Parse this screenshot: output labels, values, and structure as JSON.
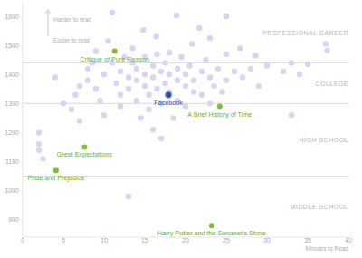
{
  "chart_data": {
    "type": "scatter",
    "x_label": "Minutes to Read",
    "xlim": [
      0,
      40
    ],
    "xticks": [
      0,
      5,
      10,
      15,
      20,
      25,
      30,
      35,
      40
    ],
    "ylim": [
      840,
      1650
    ],
    "yticks": [
      900,
      1000,
      1100,
      1200,
      1300,
      1400,
      1500,
      1600
    ],
    "color": "#d5d5f4",
    "x": [
      2,
      2,
      2,
      2.5,
      4,
      5,
      6,
      6.5,
      7,
      7,
      8,
      8.5,
      8,
      9,
      9,
      9.5,
      10,
      10.5,
      10,
      11,
      11,
      11.5,
      12,
      12,
      12.5,
      12,
      13,
      13,
      13.5,
      13.5,
      13,
      14,
      14,
      14,
      14.5,
      14.8,
      15,
      15,
      15,
      15.5,
      15.5,
      16,
      16,
      16,
      16.4,
      16.5,
      16.5,
      17,
      17,
      17,
      17.5,
      17.5,
      18,
      18,
      18,
      18.5,
      18.9,
      19,
      19,
      19,
      19.5,
      20,
      20,
      20,
      20.5,
      20.8,
      21,
      21,
      21.7,
      22,
      22,
      22.5,
      23,
      23,
      23,
      23.5,
      24,
      24.5,
      25,
      25,
      25,
      26,
      26.7,
      27,
      28,
      28.6,
      29,
      30,
      32,
      33,
      33,
      34,
      35,
      37.2,
      37.4
    ],
    "values": [
      1200,
      1160,
      1140,
      1110,
      1390,
      1300,
      1280,
      1330,
      1360,
      1240,
      1380,
      1440,
      1420,
      1480,
      1350,
      1310,
      1400,
      1515,
      1260,
      1613,
      1440,
      1370,
      1330,
      1410,
      1460,
      1290,
      1390,
      1350,
      1490,
      1440,
      980,
      1420,
      1380,
      1310,
      1250,
      1553,
      1460,
      1400,
      1360,
      1330,
      1280,
      1430,
      1390,
      1210,
      1530,
      1470,
      1350,
      1410,
      1300,
      1180,
      1440,
      1370,
      1475,
      1400,
      1340,
      1250,
      1603,
      1420,
      1380,
      1310,
      1460,
      1400,
      1360,
      1290,
      1430,
      1505,
      1380,
      1340,
      1560,
      1410,
      1330,
      1450,
      1525,
      1390,
      1300,
      1360,
      1420,
      1340,
      1600,
      1470,
      1380,
      1410,
      1490,
      1390,
      1420,
      1465,
      1360,
      1430,
      1410,
      1260,
      1440,
      1400,
      1436,
      1505,
      1483
    ],
    "highlights": [
      {
        "label": "Critique of Pure Reason",
        "x": 11.3,
        "y": 1480,
        "color": "#7cbf2f"
      },
      {
        "label": "Facebook",
        "x": 17.9,
        "y": 1330,
        "color": "#2f4f9a"
      },
      {
        "label": "A Brief History of Time",
        "x": 24.2,
        "y": 1290,
        "color": "#7cbf2f"
      },
      {
        "label": "Great Expectations",
        "x": 7.6,
        "y": 1150,
        "color": "#7cbf2f"
      },
      {
        "label": "Pride and Prejudice",
        "x": 4.1,
        "y": 1070,
        "color": "#7cbf2f"
      },
      {
        "label": "Harry Potter and the Sorcerer's Stone",
        "x": 23.2,
        "y": 880,
        "color": "#7cbf2f"
      }
    ],
    "bands": [
      {
        "label": "PROFESSIONAL CAREER",
        "from": 1440,
        "to": 1650
      },
      {
        "label": "COLLEGE",
        "from": 1300,
        "to": 1440
      },
      {
        "label": "HIGH SCHOOL",
        "from": 1050,
        "to": 1300
      },
      {
        "label": "MIDDLE SCHOOL",
        "from": 840,
        "to": 1050
      }
    ],
    "annotations": [
      {
        "text": "Harder to read"
      },
      {
        "text": "Easier to read"
      }
    ]
  }
}
